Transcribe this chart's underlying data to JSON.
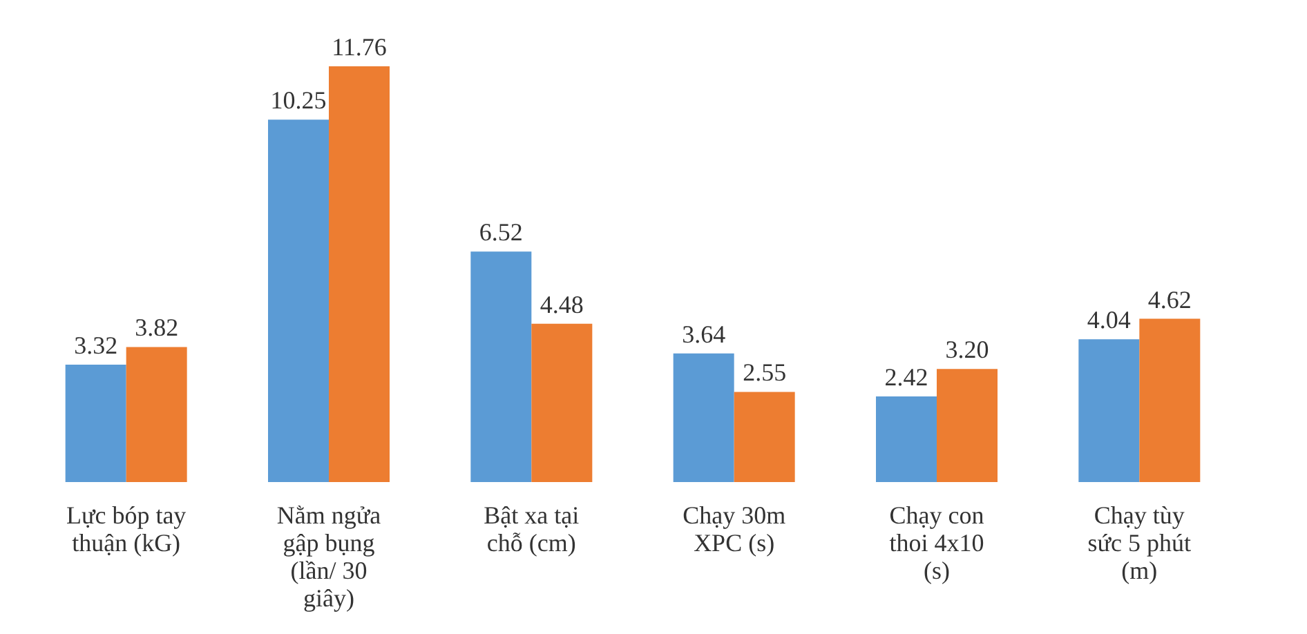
{
  "chart_data": {
    "type": "bar",
    "categories": [
      "Lực bóp tay thuận (kG)",
      "Nằm ngửa gập bụng (lần/ 30 giây)",
      "Bật xa tại chỗ (cm)",
      "Chạy 30m XPC (s)",
      "Chạy con thoi 4x10 (s)",
      "Chạy tùy sức 5 phút (m)"
    ],
    "series": [
      {
        "color": "#5b9bd5",
        "values": [
          3.32,
          10.25,
          6.52,
          3.64,
          2.42,
          4.04
        ],
        "value_labels": [
          "3.32",
          "10.25",
          "6.52",
          "3.64",
          "2.42",
          "4.04"
        ]
      },
      {
        "color": "#ed7d31",
        "values": [
          3.82,
          11.76,
          4.48,
          2.55,
          3.2,
          4.62
        ],
        "value_labels": [
          "3.82",
          "11.76",
          "4.48",
          "2.55",
          "3.20",
          "4.62"
        ]
      }
    ],
    "grid": false,
    "legend": false
  }
}
